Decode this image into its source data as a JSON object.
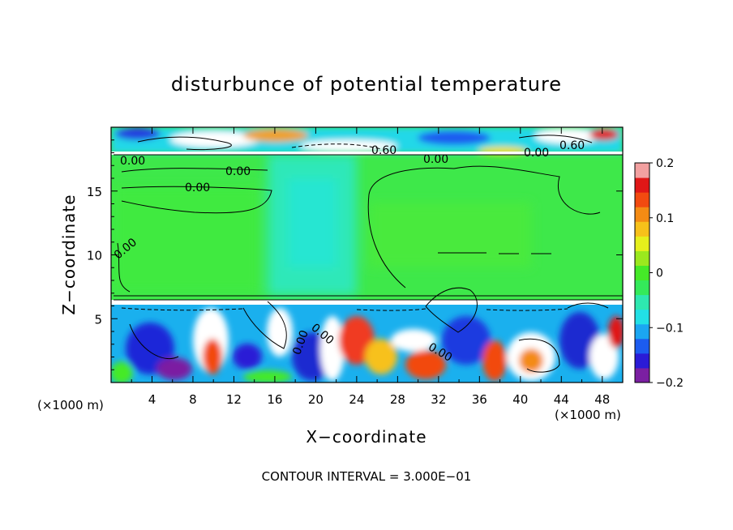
{
  "chart_data": {
    "type": "heatmap",
    "title": "disturbunce of potential temperature",
    "xlabel": "X−coordinate",
    "ylabel": "Z−coordinate",
    "x_unit": "(×1000 m)",
    "z_unit": "(×1000 m)",
    "xlim": [
      0,
      50
    ],
    "ylim": [
      0,
      20
    ],
    "x_ticks": [
      "4",
      "8",
      "12",
      "16",
      "20",
      "24",
      "28",
      "32",
      "36",
      "40",
      "44",
      "48"
    ],
    "x_tick_values": [
      4,
      8,
      12,
      16,
      20,
      24,
      28,
      32,
      36,
      40,
      44,
      48
    ],
    "y_ticks": [
      "5",
      "10",
      "15"
    ],
    "y_tick_values": [
      5,
      10,
      15
    ],
    "colorbar": {
      "range": [
        -0.2,
        0.2
      ],
      "ticks": [
        "0.2",
        "0.1",
        "0",
        "−0.1",
        "−0.2"
      ],
      "tick_values": [
        0.2,
        0.1,
        0,
        -0.1,
        -0.2
      ],
      "colors": [
        "#7b1fa2",
        "#2a1bd6",
        "#1c5cf0",
        "#1ba6f2",
        "#22e0e6",
        "#2ee8b0",
        "#34ea5a",
        "#45ea28",
        "#9be81e",
        "#e6f01c",
        "#f7c11a",
        "#f48b14",
        "#f24a10",
        "#e01717",
        "#f2a0a0"
      ]
    },
    "contour_interval_label": "CONTOUR INTERVAL = 3.000E−01",
    "contour_labels": [
      "0.00",
      "0.00",
      "0.00",
      "0.00",
      "0.00",
      "0.00",
      "0.00",
      "0.00",
      "0.00",
      "0.60",
      "0.60"
    ],
    "grid": false
  }
}
